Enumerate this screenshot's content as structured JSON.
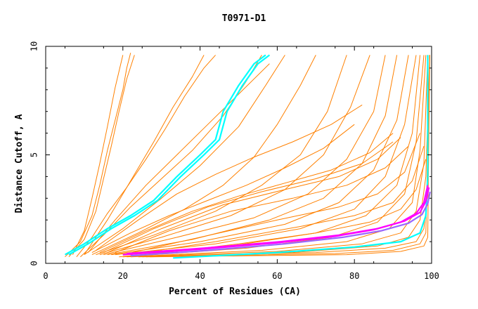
{
  "chart_data": {
    "type": "line",
    "title": "T0971-D1",
    "xlabel": "Percent of Residues (CA)",
    "ylabel": "Distance Cutoff, A",
    "xlim": [
      0,
      100
    ],
    "ylim": [
      0,
      10
    ],
    "x_ticks": [
      0,
      20,
      40,
      60,
      80,
      100
    ],
    "y_ticks": [
      0,
      5,
      10
    ],
    "x_tick_labels": [
      "0",
      "20",
      "40",
      "60",
      "80",
      "100"
    ],
    "y_tick_labels": [
      "0",
      "5",
      "10"
    ],
    "grid": false,
    "legend": "none",
    "series_color_default": "#ff8000",
    "highlight_colors": [
      "#00ffff",
      "#ff00ff",
      "#9966ff"
    ],
    "series": [
      {
        "color": "#ff8000",
        "x": [
          5,
          9,
          12,
          14,
          16,
          18,
          20,
          21,
          22
        ],
        "y": [
          0.3,
          1.0,
          2.2,
          3.6,
          5.2,
          6.6,
          8.0,
          9.0,
          9.7
        ]
      },
      {
        "color": "#ff8000",
        "x": [
          6,
          10,
          13,
          15,
          17,
          19,
          21,
          23
        ],
        "y": [
          0.3,
          1.1,
          2.4,
          3.9,
          5.4,
          7.0,
          8.5,
          9.6
        ]
      },
      {
        "color": "#ff8000",
        "x": [
          7,
          10,
          12,
          14,
          16,
          18,
          20
        ],
        "y": [
          0.4,
          1.5,
          3.0,
          4.6,
          6.3,
          8.1,
          9.6
        ]
      },
      {
        "color": "#ff8000",
        "x": [
          8,
          12,
          16,
          21,
          26,
          31,
          36,
          41,
          44
        ],
        "y": [
          0.3,
          1.2,
          2.3,
          3.5,
          4.8,
          6.2,
          7.7,
          9.0,
          9.6
        ]
      },
      {
        "color": "#ff8000",
        "x": [
          9,
          15,
          22,
          30,
          38,
          46,
          52,
          56
        ],
        "y": [
          0.3,
          1.3,
          2.6,
          3.9,
          5.2,
          6.8,
          8.4,
          9.6
        ]
      },
      {
        "color": "#ff8000",
        "x": [
          10,
          20,
          30,
          40,
          50,
          57,
          62
        ],
        "y": [
          0.4,
          1.6,
          3.0,
          4.5,
          6.3,
          8.2,
          9.6
        ]
      },
      {
        "color": "#ff8000",
        "x": [
          12,
          24,
          36,
          46,
          54,
          60,
          66,
          70
        ],
        "y": [
          0.4,
          1.4,
          2.5,
          3.6,
          4.9,
          6.4,
          8.2,
          9.6
        ]
      },
      {
        "color": "#ff8000",
        "x": [
          13,
          28,
          44,
          56,
          66,
          73,
          78
        ],
        "y": [
          0.4,
          1.3,
          2.4,
          3.6,
          5.0,
          7.0,
          9.6
        ]
      },
      {
        "color": "#ff8000",
        "x": [
          14,
          30,
          48,
          62,
          72,
          79,
          84
        ],
        "y": [
          0.4,
          1.2,
          2.2,
          3.4,
          5.0,
          7.2,
          9.6
        ]
      },
      {
        "color": "#ff8000",
        "x": [
          15,
          34,
          54,
          68,
          78,
          85,
          88
        ],
        "y": [
          0.4,
          1.2,
          2.1,
          3.2,
          4.8,
          7.0,
          9.6
        ]
      },
      {
        "color": "#ff8000",
        "x": [
          16,
          38,
          58,
          72,
          82,
          88,
          91
        ],
        "y": [
          0.4,
          1.1,
          2.0,
          3.0,
          4.6,
          6.8,
          9.6
        ]
      },
      {
        "color": "#ff8000",
        "x": [
          17,
          40,
          62,
          76,
          85,
          91,
          94
        ],
        "y": [
          0.4,
          1.0,
          1.8,
          2.8,
          4.3,
          6.6,
          9.6
        ]
      },
      {
        "color": "#ff8000",
        "x": [
          18,
          44,
          66,
          80,
          88,
          93,
          96
        ],
        "y": [
          0.4,
          0.9,
          1.6,
          2.5,
          4.0,
          6.4,
          9.6
        ]
      },
      {
        "color": "#ff8000",
        "x": [
          19,
          48,
          70,
          83,
          91,
          95,
          97
        ],
        "y": [
          0.3,
          0.8,
          1.4,
          2.2,
          3.6,
          6.0,
          9.6
        ]
      },
      {
        "color": "#ff8000",
        "x": [
          20,
          52,
          74,
          86,
          93,
          96,
          98
        ],
        "y": [
          0.3,
          0.7,
          1.2,
          1.9,
          3.2,
          5.6,
          9.6
        ]
      },
      {
        "color": "#ff8000",
        "x": [
          21,
          56,
          78,
          89,
          95,
          97,
          98.5
        ],
        "y": [
          0.3,
          0.6,
          1.0,
          1.6,
          2.8,
          5.2,
          9.6
        ]
      },
      {
        "color": "#ff8000",
        "x": [
          22,
          60,
          82,
          92,
          96,
          98,
          99
        ],
        "y": [
          0.3,
          0.55,
          0.9,
          1.4,
          2.4,
          4.6,
          9.6
        ]
      },
      {
        "color": "#ff8000",
        "x": [
          24,
          64,
          86,
          94,
          97,
          98.5,
          99.5
        ],
        "y": [
          0.3,
          0.5,
          0.8,
          1.2,
          2.0,
          4.0,
          9.6
        ]
      },
      {
        "color": "#ff8000",
        "x": [
          25,
          70,
          88,
          96,
          98,
          99,
          99.5
        ],
        "y": [
          0.3,
          0.5,
          0.7,
          1.0,
          1.6,
          3.2,
          9.6
        ]
      },
      {
        "color": "#ff8000",
        "x": [
          26,
          75,
          90,
          97,
          98.5,
          99.5
        ],
        "y": [
          0.3,
          0.45,
          0.6,
          0.9,
          1.4,
          9.6
        ]
      },
      {
        "color": "#ff8000",
        "x": [
          27,
          78,
          92,
          98,
          99,
          99.5
        ],
        "y": [
          0.3,
          0.4,
          0.55,
          0.8,
          1.2,
          9.6
        ]
      },
      {
        "color": "#ff8000",
        "x": [
          12,
          22,
          32,
          42,
          52,
          62,
          72,
          80
        ],
        "y": [
          0.5,
          1.4,
          2.2,
          2.9,
          3.6,
          4.4,
          5.3,
          6.4
        ]
      },
      {
        "color": "#ff8000",
        "x": [
          14,
          26,
          38,
          50,
          62,
          74,
          84,
          90
        ],
        "y": [
          0.5,
          1.5,
          2.4,
          3.1,
          3.7,
          4.3,
          5.1,
          6.0
        ]
      },
      {
        "color": "#ff8000",
        "x": [
          15,
          28,
          42,
          56,
          70,
          82,
          90
        ],
        "y": [
          0.5,
          1.6,
          2.6,
          3.3,
          3.9,
          4.6,
          5.6
        ]
      },
      {
        "color": "#ff8000",
        "x": [
          16,
          30,
          46,
          62,
          76,
          86,
          92
        ],
        "y": [
          0.5,
          1.6,
          2.7,
          3.4,
          4.0,
          4.8,
          5.8
        ]
      },
      {
        "color": "#ff8000",
        "x": [
          13,
          24,
          34,
          44,
          54,
          64,
          74,
          82
        ],
        "y": [
          0.6,
          2.0,
          3.2,
          4.1,
          4.9,
          5.6,
          6.4,
          7.3
        ]
      },
      {
        "color": "#ff8000",
        "x": [
          18,
          32,
          48,
          64,
          78,
          88,
          94
        ],
        "y": [
          0.5,
          1.5,
          2.4,
          3.0,
          3.6,
          4.4,
          5.4
        ]
      },
      {
        "color": "#ff8000",
        "x": [
          11,
          18,
          26,
          34,
          42,
          50,
          58
        ],
        "y": [
          0.5,
          2.0,
          3.6,
          5.0,
          6.4,
          7.8,
          9.2
        ]
      },
      {
        "color": "#ff8000",
        "x": [
          10,
          16,
          22,
          28,
          33,
          38,
          41
        ],
        "y": [
          0.4,
          2.0,
          3.8,
          5.6,
          7.2,
          8.6,
          9.6
        ]
      },
      {
        "color": "#ff8000",
        "x": [
          20,
          40,
          60,
          76,
          86,
          93,
          97
        ],
        "y": [
          0.4,
          1.2,
          2.0,
          2.6,
          3.2,
          4.2,
          6.0
        ]
      },
      {
        "color": "#ff8000",
        "x": [
          22,
          44,
          66,
          80,
          90,
          95,
          98
        ],
        "y": [
          0.4,
          1.0,
          1.7,
          2.2,
          2.8,
          3.8,
          5.4
        ]
      },
      {
        "color": "#ff8000",
        "x": [
          24,
          50,
          70,
          84,
          92,
          96,
          98.5
        ],
        "y": [
          0.35,
          0.9,
          1.4,
          1.9,
          2.5,
          3.4,
          4.8
        ]
      },
      {
        "color": "#00ffff",
        "x": [
          5,
          10,
          16,
          22,
          28,
          34,
          40,
          44,
          46,
          50,
          54,
          57
        ],
        "y": [
          0.4,
          0.9,
          1.6,
          2.2,
          2.9,
          4.0,
          5.0,
          5.7,
          7.0,
          8.2,
          9.2,
          9.6
        ]
      },
      {
        "color": "#00ffff",
        "x": [
          6,
          11,
          17,
          23,
          29,
          35,
          41,
          45,
          47,
          51,
          55,
          58
        ],
        "y": [
          0.4,
          0.9,
          1.6,
          2.2,
          2.9,
          4.0,
          5.0,
          5.7,
          7.0,
          8.2,
          9.2,
          9.6
        ]
      },
      {
        "color": "#00ffff",
        "x": [
          33,
          60,
          80,
          92,
          97,
          98.5,
          99,
          99
        ],
        "y": [
          0.25,
          0.5,
          0.75,
          1.0,
          1.4,
          2.2,
          4.0,
          9.6
        ]
      },
      {
        "color": "#ff00ff",
        "x": [
          20,
          40,
          60,
          75,
          85,
          92,
          96,
          98,
          99
        ],
        "y": [
          0.4,
          0.65,
          0.95,
          1.25,
          1.55,
          1.9,
          2.3,
          2.8,
          3.6
        ]
      },
      {
        "color": "#ff00ff",
        "x": [
          21,
          41,
          61,
          76,
          86,
          93,
          97,
          98.5,
          99.3
        ],
        "y": [
          0.45,
          0.7,
          1.0,
          1.3,
          1.6,
          1.95,
          2.35,
          2.85,
          3.5
        ]
      },
      {
        "color": "#9966ff",
        "x": [
          22,
          42,
          62,
          77,
          87,
          94,
          97.5,
          99,
          99.6
        ],
        "y": [
          0.35,
          0.6,
          0.9,
          1.2,
          1.5,
          1.85,
          2.25,
          2.75,
          3.3
        ]
      }
    ]
  }
}
